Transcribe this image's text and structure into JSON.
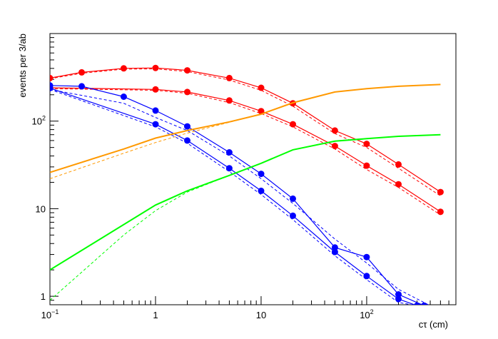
{
  "chart_data": {
    "type": "line",
    "xlabel": "cτ (cm)",
    "ylabel": "events per 3/ab",
    "x_scale": "log",
    "y_scale": "log",
    "xlim": [
      0.1,
      700
    ],
    "ylim": [
      0.8,
      1000
    ],
    "grid": false,
    "x_ticks": [
      {
        "value": 0.1,
        "base": "10",
        "exp": "−1"
      },
      {
        "value": 1,
        "base": "1",
        "exp": ""
      },
      {
        "value": 10,
        "base": "10",
        "exp": ""
      },
      {
        "value": 100,
        "base": "10",
        "exp": "2"
      }
    ],
    "y_ticks": [
      {
        "value": 1,
        "base": "1",
        "exp": ""
      },
      {
        "value": 10,
        "base": "10",
        "exp": ""
      },
      {
        "value": 100,
        "base": "10",
        "exp": "2"
      }
    ],
    "series": [
      {
        "color": "#ff0000",
        "style": "solid",
        "marker": true,
        "x": [
          0.1,
          0.2,
          0.5,
          1,
          2,
          5,
          10,
          20,
          50,
          100,
          200,
          500
        ],
        "y": [
          310,
          360,
          400,
          405,
          380,
          310,
          240,
          160,
          78,
          55,
          32,
          15.5
        ]
      },
      {
        "color": "#ff0000",
        "style": "dashed",
        "marker": false,
        "x": [
          0.1,
          0.2,
          0.5,
          1,
          2,
          5,
          10,
          20,
          50,
          100,
          200,
          500
        ],
        "y": [
          305,
          352,
          392,
          395,
          368,
          295,
          225,
          148,
          72,
          50,
          29,
          14
        ]
      },
      {
        "color": "#ff0000",
        "style": "solid",
        "marker": true,
        "x": [
          0.1,
          1,
          2,
          5,
          10,
          20,
          50,
          100,
          200,
          500
        ],
        "y": [
          240,
          230,
          215,
          172,
          130,
          92,
          52,
          31,
          19,
          9.2
        ]
      },
      {
        "color": "#ff0000",
        "style": "dashed",
        "marker": false,
        "x": [
          0.1,
          1,
          2,
          5,
          10,
          20,
          50,
          100,
          200,
          500
        ],
        "y": [
          235,
          225,
          208,
          163,
          122,
          86,
          48,
          28,
          17.5,
          8.5
        ]
      },
      {
        "color": "#0000ff",
        "style": "solid",
        "marker": true,
        "x": [
          0.1,
          0.2,
          0.5,
          1,
          2,
          5,
          10,
          20,
          50,
          100,
          200,
          350
        ],
        "y": [
          255,
          250,
          190,
          132,
          87,
          44,
          25,
          13,
          3.6,
          2.8,
          1.05,
          0.78
        ]
      },
      {
        "color": "#0000ff",
        "style": "dashed",
        "marker": false,
        "x": [
          0.1,
          0.5,
          1,
          2,
          5,
          10,
          20,
          50,
          100,
          200,
          400
        ],
        "y": [
          230,
          160,
          110,
          78,
          40,
          22,
          11.5,
          4.5,
          2.4,
          1.2,
          0.78
        ]
      },
      {
        "color": "#0000ff",
        "style": "solid",
        "marker": true,
        "x": [
          0.1,
          1,
          2,
          5,
          10,
          20,
          50,
          100,
          200,
          300
        ],
        "y": [
          238,
          92,
          60,
          29,
          16,
          8.3,
          3.2,
          1.7,
          0.93,
          0.78
        ]
      },
      {
        "color": "#0000ff",
        "style": "dashed",
        "marker": false,
        "x": [
          0.1,
          1,
          2,
          5,
          10,
          20,
          50,
          100,
          200,
          300
        ],
        "y": [
          230,
          86,
          56,
          26.5,
          14.5,
          7.5,
          2.9,
          1.55,
          0.85,
          0.78
        ]
      },
      {
        "color": "#ff9900",
        "style": "solid",
        "marker": false,
        "x": [
          0.1,
          0.5,
          1,
          2,
          5,
          10,
          20,
          50,
          100,
          200,
          500
        ],
        "y": [
          26,
          48,
          64,
          78,
          98,
          120,
          162,
          215,
          235,
          250,
          262
        ]
      },
      {
        "color": "#ff9900",
        "style": "dashed",
        "marker": false,
        "x": [
          0.1,
          0.5,
          1,
          2,
          5,
          10,
          20,
          50,
          100,
          200,
          500
        ],
        "y": [
          22,
          43,
          57,
          73,
          97,
          120,
          162,
          215,
          235,
          250,
          262
        ]
      },
      {
        "color": "#00ff00",
        "style": "solid",
        "marker": false,
        "x": [
          0.1,
          1,
          2,
          5,
          10,
          20,
          50,
          100,
          200,
          500
        ],
        "y": [
          2.0,
          11,
          16,
          24,
          33,
          47,
          59,
          63,
          67,
          70
        ]
      },
      {
        "color": "#00ff00",
        "style": "dashed",
        "marker": false,
        "x": [
          0.1,
          0.5,
          1,
          2,
          5,
          10,
          20,
          50,
          100,
          200,
          500
        ],
        "y": [
          0.9,
          5,
          9.5,
          15.5,
          24,
          33,
          47,
          59,
          63,
          67,
          70
        ]
      }
    ]
  }
}
